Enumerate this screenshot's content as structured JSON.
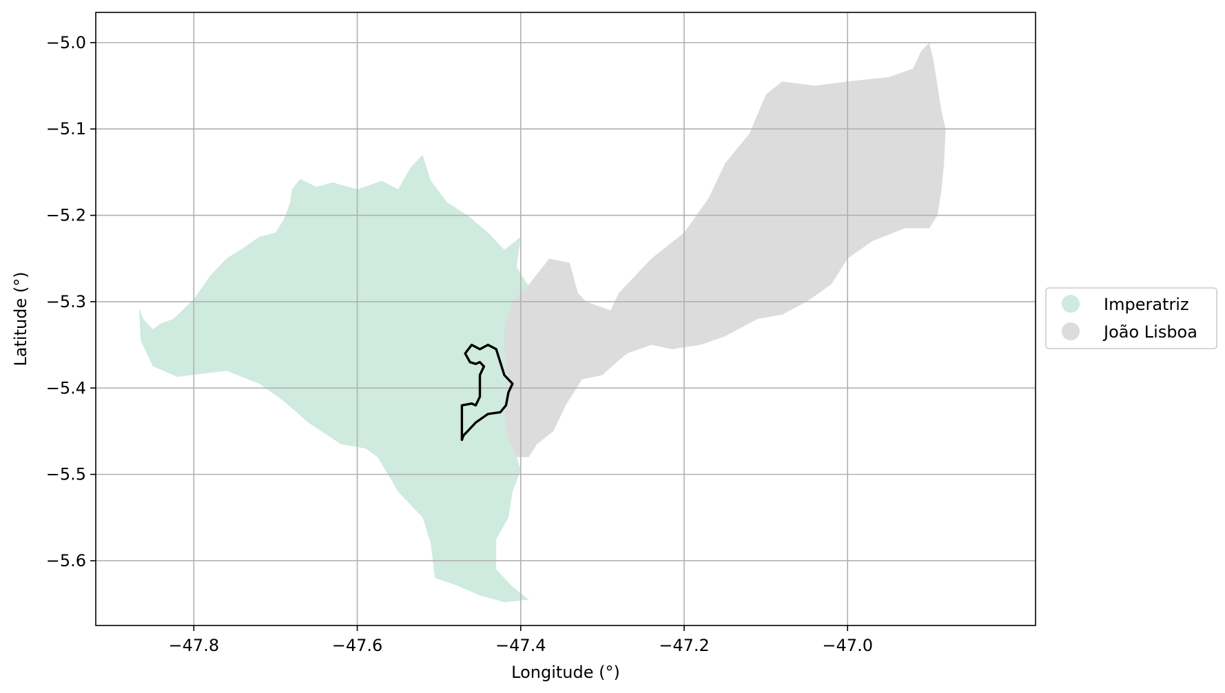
{
  "chart_data": {
    "type": "map",
    "title": "",
    "xlabel": "Longitude (°)",
    "ylabel": "Latitude (°)",
    "xlim": [
      -47.92,
      -46.77
    ],
    "ylim": [
      -5.675,
      -4.965
    ],
    "xticks": [
      -47.8,
      -47.6,
      -47.4,
      -47.2,
      -47.0
    ],
    "xtick_labels": [
      "−47.8",
      "−47.6",
      "−47.4",
      "−47.2",
      "−47.0"
    ],
    "yticks": [
      -5.0,
      -5.1,
      -5.2,
      -5.3,
      -5.4,
      -5.5,
      -5.6
    ],
    "ytick_labels": [
      "−5.0",
      "−5.1",
      "−5.2",
      "−5.3",
      "−5.4",
      "−5.5",
      "−5.6"
    ],
    "grid": true,
    "legend_position": "right",
    "regions": [
      {
        "name": "Imperatriz",
        "color": "#cfeade",
        "coords": [
          [
            -47.867,
            -5.307
          ],
          [
            -47.862,
            -5.32
          ],
          [
            -47.85,
            -5.332
          ],
          [
            -47.84,
            -5.325
          ],
          [
            -47.825,
            -5.32
          ],
          [
            -47.8,
            -5.297
          ],
          [
            -47.78,
            -5.27
          ],
          [
            -47.76,
            -5.25
          ],
          [
            -47.74,
            -5.238
          ],
          [
            -47.72,
            -5.225
          ],
          [
            -47.7,
            -5.22
          ],
          [
            -47.69,
            -5.205
          ],
          [
            -47.682,
            -5.185
          ],
          [
            -47.68,
            -5.17
          ],
          [
            -47.67,
            -5.158
          ],
          [
            -47.65,
            -5.167
          ],
          [
            -47.63,
            -5.162
          ],
          [
            -47.6,
            -5.17
          ],
          [
            -47.57,
            -5.16
          ],
          [
            -47.55,
            -5.17
          ],
          [
            -47.535,
            -5.145
          ],
          [
            -47.52,
            -5.13
          ],
          [
            -47.51,
            -5.16
          ],
          [
            -47.49,
            -5.185
          ],
          [
            -47.465,
            -5.2
          ],
          [
            -47.44,
            -5.22
          ],
          [
            -47.42,
            -5.24
          ],
          [
            -47.4,
            -5.225
          ],
          [
            -47.405,
            -5.26
          ],
          [
            -47.385,
            -5.29
          ],
          [
            -47.37,
            -5.28
          ],
          [
            -47.365,
            -5.29
          ],
          [
            -47.39,
            -5.315
          ],
          [
            -47.415,
            -5.33
          ],
          [
            -47.42,
            -5.36
          ],
          [
            -47.415,
            -5.4
          ],
          [
            -47.42,
            -5.43
          ],
          [
            -47.415,
            -5.46
          ],
          [
            -47.405,
            -5.48
          ],
          [
            -47.4,
            -5.495
          ],
          [
            -47.41,
            -5.52
          ],
          [
            -47.415,
            -5.55
          ],
          [
            -47.43,
            -5.575
          ],
          [
            -47.43,
            -5.61
          ],
          [
            -47.41,
            -5.63
          ],
          [
            -47.39,
            -5.645
          ],
          [
            -47.42,
            -5.648
          ],
          [
            -47.45,
            -5.64
          ],
          [
            -47.48,
            -5.628
          ],
          [
            -47.505,
            -5.62
          ],
          [
            -47.51,
            -5.58
          ],
          [
            -47.52,
            -5.55
          ],
          [
            -47.55,
            -5.52
          ],
          [
            -47.575,
            -5.48
          ],
          [
            -47.59,
            -5.47
          ],
          [
            -47.62,
            -5.465
          ],
          [
            -47.66,
            -5.44
          ],
          [
            -47.69,
            -5.415
          ],
          [
            -47.72,
            -5.395
          ],
          [
            -47.76,
            -5.38
          ],
          [
            -47.82,
            -5.387
          ],
          [
            -47.85,
            -5.375
          ],
          [
            -47.865,
            -5.345
          ],
          [
            -47.867,
            -5.307
          ]
        ]
      },
      {
        "name": "João Lisboa",
        "color": "#dcdcdc",
        "coords": [
          [
            -47.42,
            -5.33
          ],
          [
            -47.41,
            -5.3
          ],
          [
            -47.39,
            -5.28
          ],
          [
            -47.365,
            -5.25
          ],
          [
            -47.34,
            -5.255
          ],
          [
            -47.33,
            -5.29
          ],
          [
            -47.32,
            -5.3
          ],
          [
            -47.29,
            -5.31
          ],
          [
            -47.28,
            -5.29
          ],
          [
            -47.24,
            -5.25
          ],
          [
            -47.2,
            -5.22
          ],
          [
            -47.17,
            -5.18
          ],
          [
            -47.15,
            -5.14
          ],
          [
            -47.12,
            -5.105
          ],
          [
            -47.1,
            -5.06
          ],
          [
            -47.08,
            -5.045
          ],
          [
            -47.04,
            -5.05
          ],
          [
            -47.0,
            -5.045
          ],
          [
            -46.95,
            -5.04
          ],
          [
            -46.92,
            -5.03
          ],
          [
            -46.91,
            -5.01
          ],
          [
            -46.9,
            -5.0
          ],
          [
            -46.895,
            -5.02
          ],
          [
            -46.89,
            -5.05
          ],
          [
            -46.885,
            -5.08
          ],
          [
            -46.88,
            -5.1
          ],
          [
            -46.882,
            -5.14
          ],
          [
            -46.885,
            -5.17
          ],
          [
            -46.89,
            -5.2
          ],
          [
            -46.9,
            -5.215
          ],
          [
            -46.93,
            -5.215
          ],
          [
            -46.97,
            -5.23
          ],
          [
            -47.0,
            -5.25
          ],
          [
            -47.02,
            -5.28
          ],
          [
            -47.05,
            -5.3
          ],
          [
            -47.08,
            -5.315
          ],
          [
            -47.11,
            -5.32
          ],
          [
            -47.15,
            -5.34
          ],
          [
            -47.18,
            -5.35
          ],
          [
            -47.215,
            -5.355
          ],
          [
            -47.24,
            -5.35
          ],
          [
            -47.27,
            -5.36
          ],
          [
            -47.285,
            -5.372
          ],
          [
            -47.3,
            -5.385
          ],
          [
            -47.325,
            -5.39
          ],
          [
            -47.345,
            -5.42
          ],
          [
            -47.36,
            -5.45
          ],
          [
            -47.38,
            -5.465
          ],
          [
            -47.39,
            -5.48
          ],
          [
            -47.405,
            -5.48
          ],
          [
            -47.415,
            -5.46
          ],
          [
            -47.42,
            -5.43
          ],
          [
            -47.415,
            -5.4
          ],
          [
            -47.42,
            -5.36
          ],
          [
            -47.42,
            -5.33
          ]
        ]
      }
    ],
    "outline": {
      "color": "#000000",
      "coords": [
        [
          -47.468,
          -5.36
        ],
        [
          -47.46,
          -5.35
        ],
        [
          -47.45,
          -5.355
        ],
        [
          -47.44,
          -5.35
        ],
        [
          -47.43,
          -5.355
        ],
        [
          -47.425,
          -5.37
        ],
        [
          -47.42,
          -5.385
        ],
        [
          -47.41,
          -5.395
        ],
        [
          -47.415,
          -5.405
        ],
        [
          -47.418,
          -5.42
        ],
        [
          -47.425,
          -5.428
        ],
        [
          -47.44,
          -5.43
        ],
        [
          -47.455,
          -5.44
        ],
        [
          -47.465,
          -5.45
        ],
        [
          -47.47,
          -5.455
        ],
        [
          -47.472,
          -5.46
        ],
        [
          -47.472,
          -5.42
        ],
        [
          -47.46,
          -5.418
        ],
        [
          -47.455,
          -5.42
        ],
        [
          -47.45,
          -5.41
        ],
        [
          -47.45,
          -5.385
        ],
        [
          -47.445,
          -5.375
        ],
        [
          -47.45,
          -5.37
        ],
        [
          -47.455,
          -5.372
        ],
        [
          -47.462,
          -5.37
        ],
        [
          -47.468,
          -5.36
        ]
      ]
    },
    "legend": [
      {
        "label": "Imperatriz",
        "color": "#cfeade"
      },
      {
        "label": "João Lisboa",
        "color": "#dcdcdc"
      }
    ]
  }
}
